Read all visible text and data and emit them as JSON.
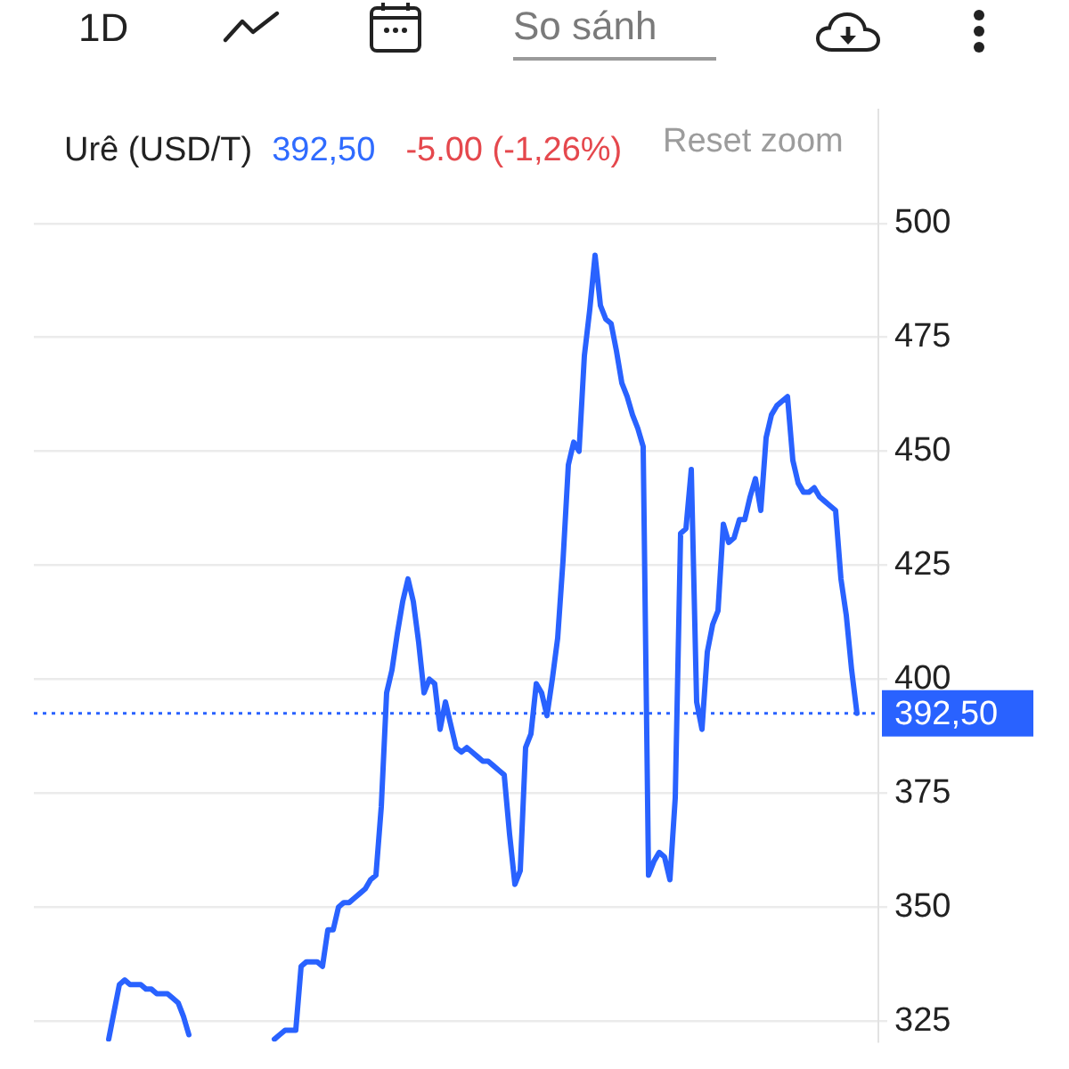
{
  "chart_data": {
    "type": "line",
    "title": "Urê (USD/T)",
    "annotations": [
      "1D",
      "So sánh",
      "392,50",
      "-5.00 (-1,26%)",
      "Reset zoom"
    ],
    "categories": [
      null,
      null,
      null,
      null,
      null,
      null,
      null,
      null,
      null,
      null,
      null,
      null,
      null,
      null,
      null,
      null,
      null,
      null,
      null,
      null,
      null,
      null,
      null,
      null,
      null,
      null,
      null,
      null,
      null,
      null,
      null,
      null,
      null,
      null,
      null,
      null,
      null,
      null,
      null,
      null,
      null,
      null,
      null,
      null,
      null,
      null,
      null,
      null,
      null,
      null,
      null,
      null,
      null,
      null,
      null,
      null,
      null,
      null,
      null,
      null,
      null,
      null,
      null,
      null,
      null,
      null,
      null,
      null,
      null,
      null,
      null,
      null,
      null,
      null,
      null,
      null,
      null,
      null,
      null,
      null,
      null,
      null,
      null,
      null,
      null,
      null,
      null,
      null,
      null,
      null,
      null,
      null,
      null,
      null,
      null,
      null,
      null,
      null,
      null,
      null,
      null,
      null,
      null,
      null,
      null,
      null,
      null,
      null,
      null,
      null,
      null,
      null,
      null,
      null,
      null,
      null,
      null,
      null,
      null,
      null,
      null,
      null,
      null,
      null,
      null,
      null,
      null,
      null,
      null,
      null,
      null,
      null,
      null,
      null,
      null,
      null,
      null,
      null,
      null,
      null,
      null,
      null,
      null,
      null,
      null,
      null,
      null,
      null,
      null,
      null,
      null,
      null,
      null,
      null,
      null,
      null,
      null,
      null,
      null
    ],
    "series": [
      {
        "color": "#2962ff",
        "values": [
          null,
          null,
          null,
          null,
          null,
          null,
          null,
          null,
          null,
          null,
          null,
          null,
          null,
          null,
          321,
          327,
          333,
          334,
          333,
          333,
          333,
          332,
          332,
          331,
          331,
          331,
          330,
          329,
          326,
          322,
          null,
          null,
          null,
          null,
          null,
          null,
          null,
          null,
          null,
          null,
          null,
          null,
          null,
          null,
          null,
          null,
          null,
          null,
          null,
          null,
          null,
          null,
          null,
          null,
          null,
          null,
          null,
          null,
          null,
          null,
          null,
          null,
          null,
          null,
          null,
          null,
          null,
          null,
          null,
          null,
          null,
          null,
          null,
          null,
          null,
          null,
          null,
          null,
          null,
          null,
          null,
          null,
          null,
          null,
          null,
          null,
          null,
          null,
          null,
          null,
          null,
          null,
          null,
          null,
          null,
          null,
          null,
          null,
          null,
          null,
          null,
          null,
          null,
          null,
          null,
          null,
          null,
          null,
          null,
          null,
          null,
          null,
          null,
          null,
          null,
          null,
          null,
          null,
          null,
          null,
          null,
          null,
          null,
          null,
          null,
          null,
          null,
          null,
          null,
          null,
          null,
          null,
          null,
          null,
          null,
          null,
          null,
          null,
          null,
          null,
          null,
          null,
          null,
          null,
          null,
          null,
          null,
          null,
          null,
          null,
          null,
          null,
          null,
          null,
          null,
          null,
          null,
          null,
          null
        ]
      },
      {
        "color": "#2962ff",
        "values": [
          null,
          null,
          null,
          null,
          null,
          null,
          null,
          null,
          null,
          null,
          null,
          null,
          null,
          null,
          null,
          null,
          null,
          null,
          null,
          null,
          null,
          null,
          null,
          null,
          null,
          null,
          null,
          null,
          null,
          null,
          null,
          null,
          null,
          null,
          null,
          null,
          null,
          null,
          null,
          null,
          null,
          null,
          null,
          null,
          null,
          321,
          322,
          323,
          323,
          323,
          337,
          338,
          338,
          338,
          337,
          345,
          345,
          350,
          351,
          351,
          352,
          353,
          354,
          356,
          357,
          372,
          397,
          402,
          410,
          417,
          422,
          417,
          408,
          397,
          400,
          399,
          389,
          395,
          390,
          385,
          384,
          385,
          384,
          383,
          382,
          382,
          381,
          380,
          379,
          366,
          355,
          358,
          385,
          388,
          399,
          397,
          392,
          400,
          409,
          426,
          447,
          452,
          450,
          471,
          481,
          493,
          482,
          479,
          478,
          472,
          465,
          462,
          458,
          455,
          451,
          357,
          360,
          362,
          361,
          356,
          374,
          432,
          433,
          446,
          395,
          389,
          406,
          412,
          415,
          434,
          430,
          431,
          435,
          435,
          440,
          444,
          437,
          453,
          458,
          460,
          461,
          462,
          448,
          443,
          441,
          441,
          442,
          440,
          439,
          438,
          437,
          422,
          414,
          402,
          392.5,
          null,
          null,
          null,
          null
        ]
      }
    ],
    "ylim": [
      320.5,
      525
    ],
    "yticks": [
      325,
      350,
      375,
      400,
      425,
      450,
      475,
      500
    ],
    "grid": "y",
    "ref_lines": [
      {
        "axis": "y",
        "value": 392.5,
        "label": "392,50",
        "color": "#2962ff",
        "line_style": "dotted"
      }
    ]
  }
}
